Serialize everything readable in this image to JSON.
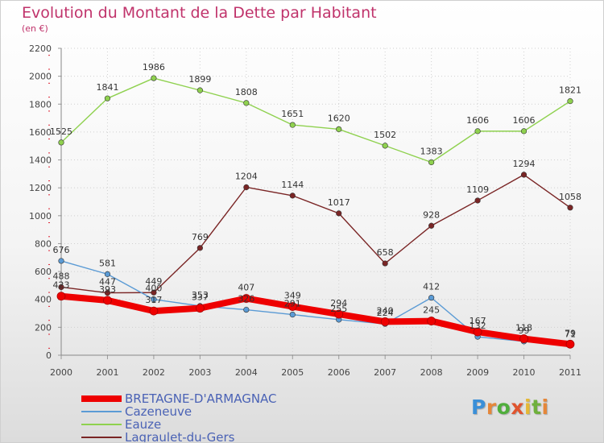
{
  "title": "Evolution du Montant de la Dette par Habitant",
  "subtitle": "(en €)",
  "logo": {
    "text": "Proxiti",
    "letter_colors": [
      "#3a8fd8",
      "#e5873a",
      "#4fae3c",
      "#e0542e",
      "#e5b835",
      "#6fb03c",
      "#e5873a"
    ]
  },
  "chart_data": {
    "type": "line",
    "title": "Evolution du Montant de la Dette par Habitant",
    "subtitle": "(en €)",
    "xlabel": "",
    "ylabel": "",
    "ylim": [
      0,
      2200
    ],
    "yticks": [
      0,
      200,
      400,
      600,
      800,
      1000,
      1200,
      1400,
      1600,
      1800,
      2000,
      2200
    ],
    "grid": true,
    "legend_position": "bottom-left",
    "categories": [
      "2000",
      "2001",
      "2002",
      "2003",
      "2004",
      "2005",
      "2006",
      "2007",
      "2008",
      "2009",
      "2010",
      "2011"
    ],
    "series": [
      {
        "name": "BRETAGNE-D'ARMAGNAC",
        "color": "#ee0000",
        "values": [
          423,
          393,
          317,
          337,
          407,
          349,
          294,
          240,
          245,
          167,
          118,
          79
        ],
        "labels": [
          "423",
          "393",
          "317",
          "337",
          "407",
          "349",
          "294",
          "240",
          "245",
          "167",
          "118",
          "79"
        ]
      },
      {
        "name": "Cazeneuve",
        "color": "#5b9bd5",
        "values": [
          676,
          581,
          400,
          353,
          326,
          291,
          255,
          224,
          412,
          132,
          99,
          71
        ],
        "labels": [
          "676",
          "581",
          "400",
          "353",
          "326",
          "291",
          "255",
          "224",
          "412",
          "132",
          "99",
          "71"
        ]
      },
      {
        "name": "Eauze",
        "color": "#8fd14f",
        "values": [
          1525,
          1841,
          1986,
          1899,
          1808,
          1651,
          1620,
          1502,
          1383,
          1606,
          1606,
          1821
        ],
        "labels": [
          "1525",
          "1841",
          "1986",
          "1899",
          "1808",
          "1651",
          "1620",
          "1502",
          "1383",
          "1606",
          "1606",
          "1821"
        ]
      },
      {
        "name": "Lagraulet-du-Gers",
        "color": "#7a2525",
        "values": [
          488,
          447,
          449,
          769,
          1204,
          1144,
          1017,
          658,
          928,
          1109,
          1294,
          1058
        ],
        "labels": [
          "488",
          "447",
          "449",
          "769",
          "1204",
          "1144",
          "1017",
          "658",
          "928",
          "1109",
          "1294",
          "1058"
        ]
      }
    ]
  }
}
